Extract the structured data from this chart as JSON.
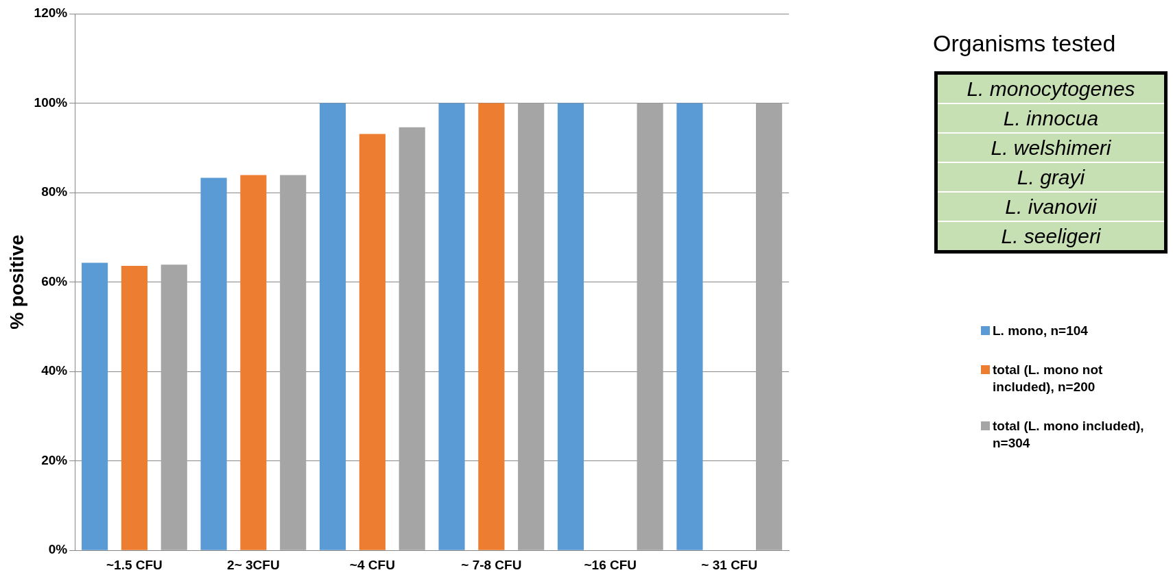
{
  "chart_data": {
    "type": "bar",
    "ylabel": "% positive",
    "categories": [
      "~1.5 CFU",
      "2~ 3CFU",
      "~4 CFU",
      "~ 7-8 CFU",
      "~16 CFU",
      "~ 31 CFU"
    ],
    "series": [
      {
        "name": "L. mono, n=104",
        "color": "#5b9bd5",
        "values": [
          64.3,
          83.3,
          100,
          100,
          100,
          100
        ]
      },
      {
        "name": "total (L. mono not included), n=200",
        "color": "#ed7d31",
        "values": [
          63.6,
          83.9,
          93.1,
          100,
          null,
          null
        ]
      },
      {
        "name": "total (L. mono included), n=304",
        "color": "#a5a5a5",
        "values": [
          63.9,
          83.9,
          94.6,
          100,
          100,
          100
        ]
      }
    ],
    "ylim": [
      0,
      120
    ],
    "yticks": [
      {
        "value": 0,
        "label": "0%"
      },
      {
        "value": 20,
        "label": "20%"
      },
      {
        "value": 40,
        "label": "40%"
      },
      {
        "value": 60,
        "label": "60%"
      },
      {
        "value": 80,
        "label": "80%"
      },
      {
        "value": 100,
        "label": "100%"
      },
      {
        "value": 120,
        "label": "120%"
      }
    ],
    "grid": "y",
    "legend": "right",
    "annotations": [
      "Organisms tested",
      "L. monocytogenes",
      "L. innocua",
      "L. welshimeri",
      "L. grayi",
      "L. ivanovii",
      "L. seeligeri"
    ]
  }
}
